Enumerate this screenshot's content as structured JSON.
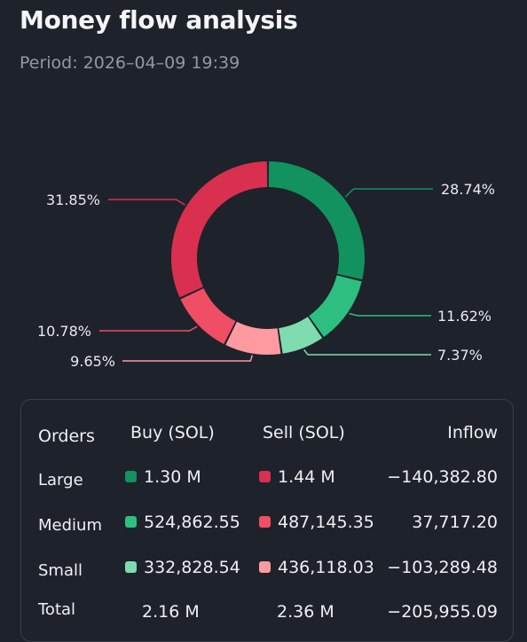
{
  "page": {
    "title": "Money flow analysis",
    "period_label": "Period:",
    "period_value": "2026–04–09 19:39"
  },
  "colors": {
    "background": "#1e222b",
    "large_buy": "#12925f",
    "medium_buy": "#2dbf7f",
    "small_buy": "#7fdcb0",
    "large_sell": "#d9304f",
    "medium_sell": "#f04e64",
    "small_sell": "#ff9aa0"
  },
  "chart_data": {
    "type": "pie",
    "style": "donut",
    "title": "",
    "start_angle": "top, clockwise",
    "slices": [
      {
        "label": "28.74%",
        "value": 28.74,
        "color": "#12925f",
        "side": "right"
      },
      {
        "label": "11.62%",
        "value": 11.62,
        "color": "#2dbf7f",
        "side": "right"
      },
      {
        "label": "7.37%",
        "value": 7.37,
        "color": "#7fdcb0",
        "side": "right"
      },
      {
        "label": "9.65%",
        "value": 9.65,
        "color": "#ff9aa0",
        "side": "left"
      },
      {
        "label": "10.78%",
        "value": 10.78,
        "color": "#f04e64",
        "side": "left"
      },
      {
        "label": "31.85%",
        "value": 31.85,
        "color": "#d9304f",
        "side": "left"
      }
    ]
  },
  "table": {
    "headers": {
      "orders": "Orders",
      "buy": "Buy (SOL)",
      "sell": "Sell (SOL)",
      "inflow": "Inflow"
    },
    "rows": [
      {
        "label": "Large",
        "buy": "1.30 M",
        "sell": "1.44 M",
        "inflow": "−140,382.80",
        "buy_color": "#12925f",
        "sell_color": "#d9304f"
      },
      {
        "label": "Medium",
        "buy": "524,862.55",
        "sell": "487,145.35",
        "inflow": "37,717.20",
        "buy_color": "#2dbf7f",
        "sell_color": "#f04e64"
      },
      {
        "label": "Small",
        "buy": "332,828.54",
        "sell": "436,118.03",
        "inflow": "−103,289.48",
        "buy_color": "#7fdcb0",
        "sell_color": "#ff9aa0"
      }
    ],
    "total": {
      "label": "Total",
      "buy": "2.16 M",
      "sell": "2.36 M",
      "inflow": "−205,955.09"
    }
  }
}
